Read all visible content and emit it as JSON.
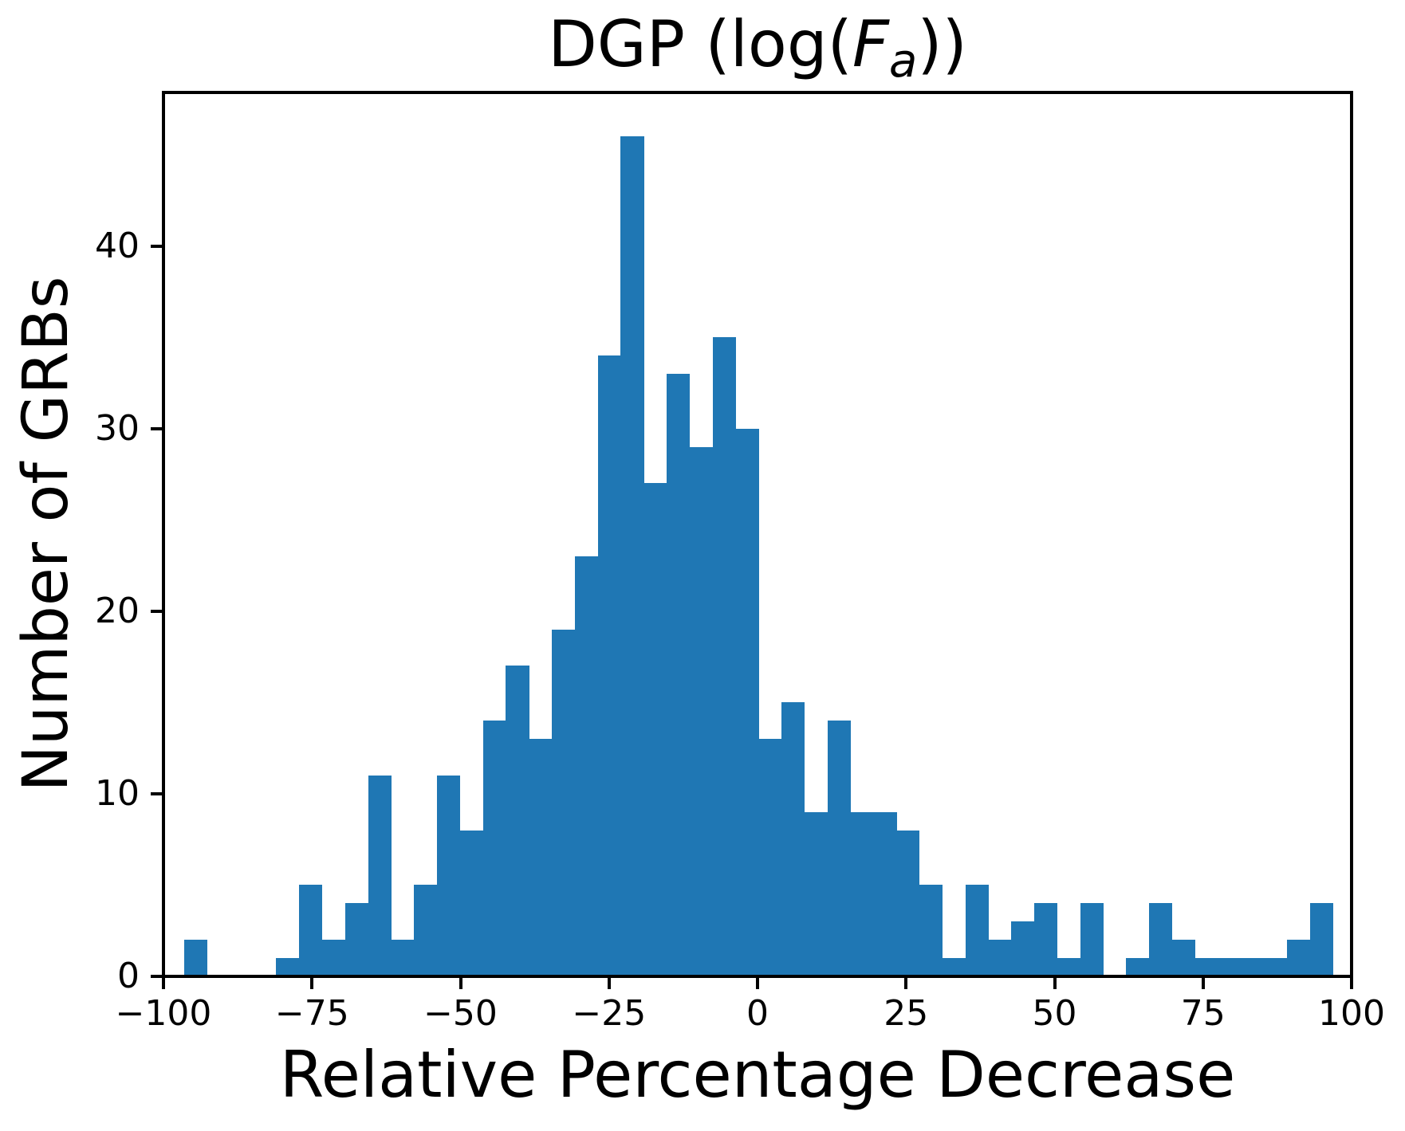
{
  "title": {
    "prefix": "DGP (log(",
    "f_var": "F",
    "f_sub": "a",
    "suffix": "))"
  },
  "chart_data": {
    "type": "histogram",
    "title": "DGP (log(F_a))",
    "xlabel": "Relative Percentage Decrease",
    "ylabel": "Number of GRBs",
    "bar_color": "#1f77b4",
    "background_color": "#ffffff",
    "grid": false,
    "legend": false,
    "xlim": [
      -100,
      100
    ],
    "ylim": [
      0,
      48.4
    ],
    "x_tick_values": [
      -100,
      -75,
      -50,
      -25,
      0,
      25,
      50,
      75,
      100
    ],
    "x_tick_labels": [
      "−100",
      "−75",
      "−50",
      "−25",
      "0",
      "25",
      "50",
      "75",
      "100"
    ],
    "y_tick_values": [
      0,
      10,
      20,
      30,
      40
    ],
    "y_tick_labels": [
      "0",
      "10",
      "20",
      "30",
      "40"
    ],
    "bin_start": -96.5,
    "bin_width": 3.867,
    "counts": [
      2,
      0,
      0,
      0,
      1,
      5,
      2,
      4,
      11,
      2,
      5,
      11,
      8,
      14,
      17,
      13,
      19,
      23,
      34,
      46,
      27,
      33,
      29,
      35,
      30,
      13,
      15,
      9,
      14,
      9,
      9,
      8,
      5,
      1,
      5,
      2,
      3,
      4,
      1,
      4,
      0,
      1,
      4,
      2,
      1,
      1,
      1,
      1,
      2,
      4
    ]
  }
}
